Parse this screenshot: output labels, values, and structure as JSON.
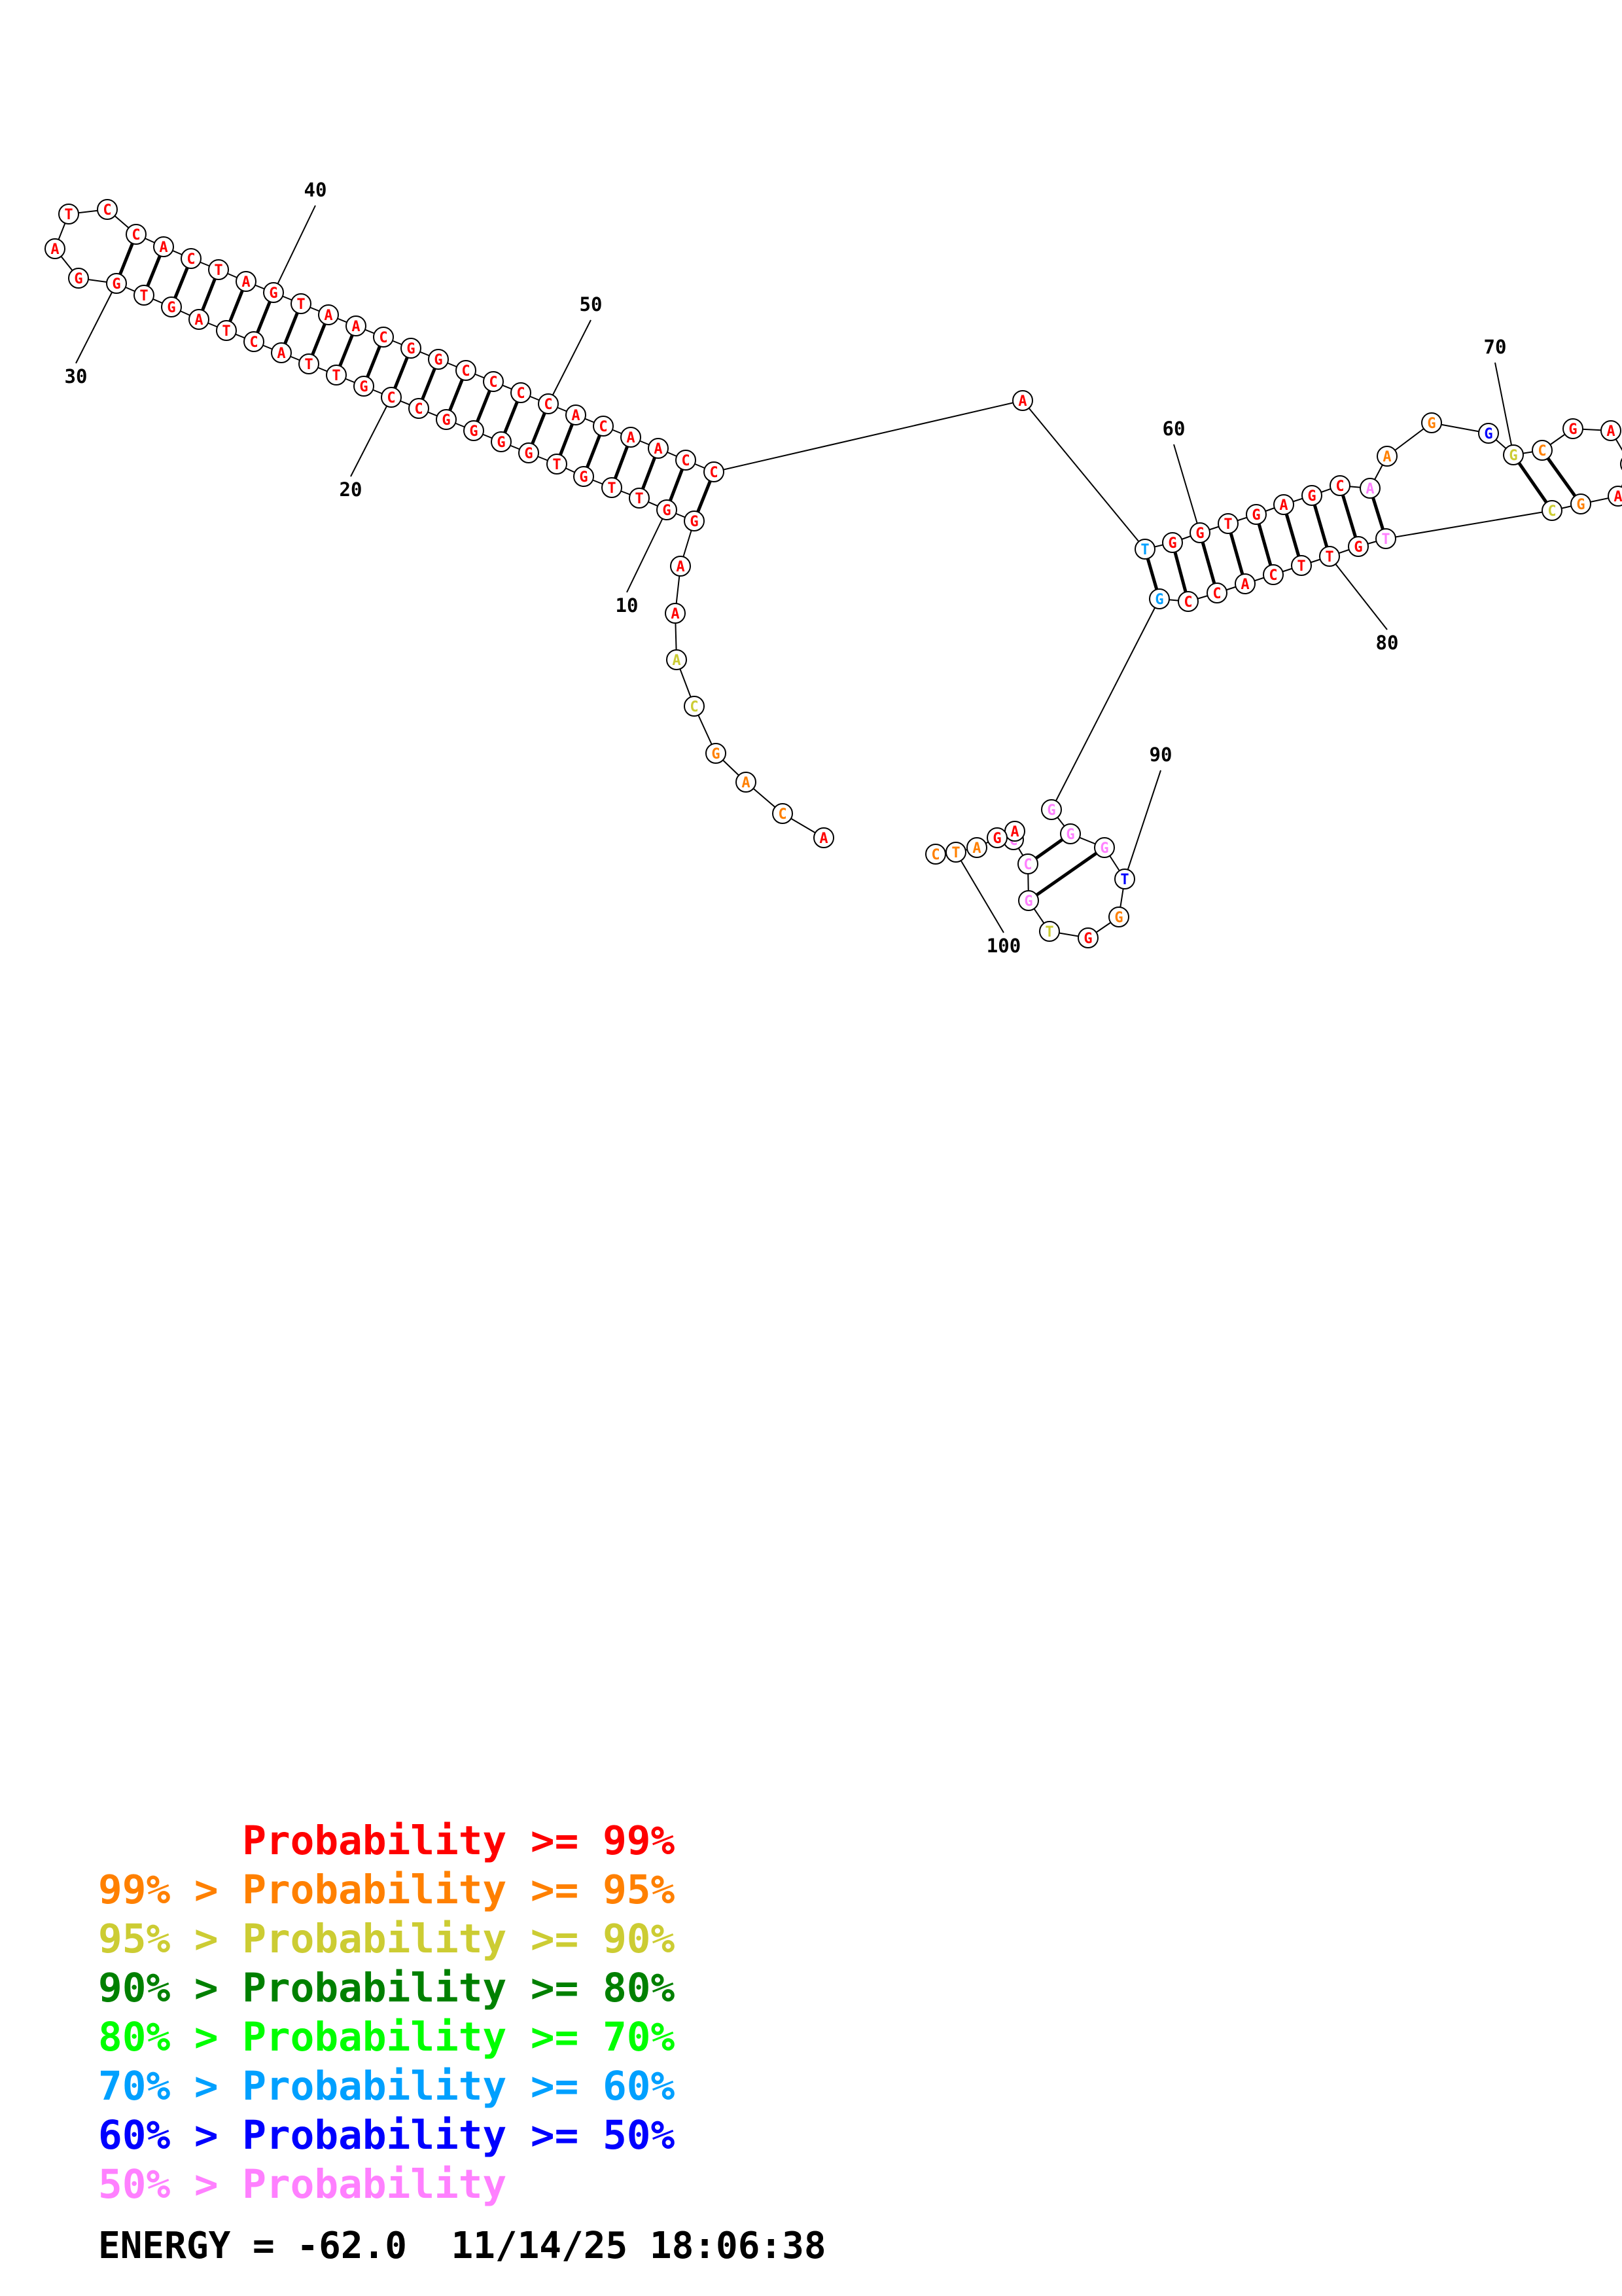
{
  "colors": {
    "p99": "#ff0000",
    "p95": "#ff8000",
    "p90": "#cccc33",
    "p80": "#008000",
    "p70": "#00ff00",
    "p60": "#00a0ff",
    "p50": "#0000ff",
    "plow": "#ff80ff"
  },
  "structure": {
    "nucleotides": [
      {
        "n": 1,
        "base": "A",
        "prob": "p99"
      },
      {
        "n": 2,
        "base": "C",
        "prob": "p95"
      },
      {
        "n": 3,
        "base": "A",
        "prob": "p95"
      },
      {
        "n": 4,
        "base": "G",
        "prob": "p95"
      },
      {
        "n": 5,
        "base": "C",
        "prob": "p90"
      },
      {
        "n": 6,
        "base": "A",
        "prob": "p90"
      },
      {
        "n": 7,
        "base": "A",
        "prob": "p99"
      },
      {
        "n": 8,
        "base": "A",
        "prob": "p99"
      },
      {
        "n": 9,
        "base": "G",
        "prob": "p99"
      },
      {
        "n": 10,
        "base": "G",
        "prob": "p99"
      },
      {
        "n": 11,
        "base": "T",
        "prob": "p99"
      },
      {
        "n": 12,
        "base": "T",
        "prob": "p99"
      },
      {
        "n": 13,
        "base": "G",
        "prob": "p99"
      },
      {
        "n": 14,
        "base": "T",
        "prob": "p99"
      },
      {
        "n": 15,
        "base": "G",
        "prob": "p99"
      },
      {
        "n": 16,
        "base": "G",
        "prob": "p99"
      },
      {
        "n": 17,
        "base": "G",
        "prob": "p99"
      },
      {
        "n": 18,
        "base": "G",
        "prob": "p99"
      },
      {
        "n": 19,
        "base": "C",
        "prob": "p99"
      },
      {
        "n": 20,
        "base": "C",
        "prob": "p99"
      },
      {
        "n": 21,
        "base": "G",
        "prob": "p99"
      },
      {
        "n": 22,
        "base": "T",
        "prob": "p99"
      },
      {
        "n": 23,
        "base": "T",
        "prob": "p99"
      },
      {
        "n": 24,
        "base": "A",
        "prob": "p99"
      },
      {
        "n": 25,
        "base": "C",
        "prob": "p99"
      },
      {
        "n": 26,
        "base": "T",
        "prob": "p99"
      },
      {
        "n": 27,
        "base": "A",
        "prob": "p99"
      },
      {
        "n": 28,
        "base": "G",
        "prob": "p99"
      },
      {
        "n": 29,
        "base": "T",
        "prob": "p99"
      },
      {
        "n": 30,
        "base": "G",
        "prob": "p99"
      },
      {
        "n": 31,
        "base": "G",
        "prob": "p99"
      },
      {
        "n": 32,
        "base": "A",
        "prob": "p99"
      },
      {
        "n": 33,
        "base": "T",
        "prob": "p99"
      },
      {
        "n": 34,
        "base": "C",
        "prob": "p99"
      },
      {
        "n": 35,
        "base": "C",
        "prob": "p99"
      },
      {
        "n": 36,
        "base": "A",
        "prob": "p99"
      },
      {
        "n": 37,
        "base": "C",
        "prob": "p99"
      },
      {
        "n": 38,
        "base": "T",
        "prob": "p99"
      },
      {
        "n": 39,
        "base": "A",
        "prob": "p99"
      },
      {
        "n": 40,
        "base": "G",
        "prob": "p99"
      },
      {
        "n": 41,
        "base": "T",
        "prob": "p99"
      },
      {
        "n": 42,
        "base": "A",
        "prob": "p99"
      },
      {
        "n": 43,
        "base": "A",
        "prob": "p99"
      },
      {
        "n": 44,
        "base": "C",
        "prob": "p99"
      },
      {
        "n": 45,
        "base": "G",
        "prob": "p99"
      },
      {
        "n": 46,
        "base": "G",
        "prob": "p99"
      },
      {
        "n": 47,
        "base": "C",
        "prob": "p99"
      },
      {
        "n": 48,
        "base": "C",
        "prob": "p99"
      },
      {
        "n": 49,
        "base": "C",
        "prob": "p99"
      },
      {
        "n": 50,
        "base": "C",
        "prob": "p99"
      },
      {
        "n": 51,
        "base": "A",
        "prob": "p99"
      },
      {
        "n": 52,
        "base": "C",
        "prob": "p99"
      },
      {
        "n": 53,
        "base": "A",
        "prob": "p99"
      },
      {
        "n": 54,
        "base": "A",
        "prob": "p99"
      },
      {
        "n": 55,
        "base": "C",
        "prob": "p99"
      },
      {
        "n": 56,
        "base": "C",
        "prob": "p99"
      },
      {
        "n": 57,
        "base": "A",
        "prob": "p99"
      },
      {
        "n": 58,
        "base": "T",
        "prob": "p60"
      },
      {
        "n": 59,
        "base": "G",
        "prob": "p99"
      },
      {
        "n": 60,
        "base": "G",
        "prob": "p99"
      },
      {
        "n": 61,
        "base": "T",
        "prob": "p99"
      },
      {
        "n": 62,
        "base": "G",
        "prob": "p99"
      },
      {
        "n": 63,
        "base": "A",
        "prob": "p99"
      },
      {
        "n": 64,
        "base": "G",
        "prob": "p99"
      },
      {
        "n": 65,
        "base": "C",
        "prob": "p99"
      },
      {
        "n": 66,
        "base": "A",
        "prob": "plow"
      },
      {
        "n": 67,
        "base": "A",
        "prob": "p95"
      },
      {
        "n": 68,
        "base": "G",
        "prob": "p95"
      },
      {
        "n": 69,
        "base": "G",
        "prob": "p50"
      },
      {
        "n": 70,
        "base": "G",
        "prob": "p90"
      },
      {
        "n": 71,
        "base": "C",
        "prob": "p95"
      },
      {
        "n": 72,
        "base": "G",
        "prob": "p99"
      },
      {
        "n": 73,
        "base": "A",
        "prob": "p99"
      },
      {
        "n": 74,
        "base": "C",
        "prob": "p99"
      },
      {
        "n": 75,
        "base": "A",
        "prob": "p99"
      },
      {
        "n": 76,
        "base": "G",
        "prob": "p95"
      },
      {
        "n": 77,
        "base": "C",
        "prob": "p90"
      },
      {
        "n": 78,
        "base": "T",
        "prob": "plow"
      },
      {
        "n": 79,
        "base": "G",
        "prob": "p99"
      },
      {
        "n": 80,
        "base": "T",
        "prob": "p99"
      },
      {
        "n": 81,
        "base": "T",
        "prob": "p99"
      },
      {
        "n": 82,
        "base": "C",
        "prob": "p99"
      },
      {
        "n": 83,
        "base": "A",
        "prob": "p99"
      },
      {
        "n": 84,
        "base": "C",
        "prob": "p99"
      },
      {
        "n": 85,
        "base": "C",
        "prob": "p99"
      },
      {
        "n": 86,
        "base": "G",
        "prob": "p60"
      },
      {
        "n": 87,
        "base": "G",
        "prob": "plow"
      },
      {
        "n": 88,
        "base": "G",
        "prob": "plow"
      },
      {
        "n": 89,
        "base": "G",
        "prob": "plow"
      },
      {
        "n": 90,
        "base": "T",
        "prob": "p50"
      },
      {
        "n": 91,
        "base": "G",
        "prob": "p95"
      },
      {
        "n": 92,
        "base": "G",
        "prob": "p99"
      },
      {
        "n": 93,
        "base": "T",
        "prob": "p90"
      },
      {
        "n": 94,
        "base": "G",
        "prob": "plow"
      },
      {
        "n": 95,
        "base": "C",
        "prob": "plow"
      },
      {
        "n": 96,
        "base": "C",
        "prob": "plow"
      },
      {
        "n": 97,
        "base": "A",
        "prob": "p99"
      },
      {
        "n": 98,
        "base": "G",
        "prob": "p99"
      },
      {
        "n": 99,
        "base": "A",
        "prob": "p95"
      },
      {
        "n": 100,
        "base": "T",
        "prob": "p95"
      },
      {
        "n": 101,
        "base": "C",
        "prob": "p95"
      }
    ],
    "pairs": [
      [
        9,
        56
      ],
      [
        10,
        55
      ],
      [
        11,
        54
      ],
      [
        12,
        53
      ],
      [
        13,
        52
      ],
      [
        14,
        51
      ],
      [
        15,
        50
      ],
      [
        16,
        49
      ],
      [
        17,
        48
      ],
      [
        18,
        47
      ],
      [
        19,
        46
      ],
      [
        20,
        45
      ],
      [
        21,
        44
      ],
      [
        22,
        43
      ],
      [
        23,
        42
      ],
      [
        24,
        41
      ],
      [
        25,
        40
      ],
      [
        26,
        39
      ],
      [
        27,
        38
      ],
      [
        28,
        37
      ],
      [
        29,
        36
      ],
      [
        30,
        35
      ],
      [
        58,
        86
      ],
      [
        59,
        85
      ],
      [
        60,
        84
      ],
      [
        61,
        83
      ],
      [
        62,
        82
      ],
      [
        63,
        81
      ],
      [
        64,
        80
      ],
      [
        65,
        79
      ],
      [
        66,
        78
      ],
      [
        70,
        77
      ],
      [
        71,
        76
      ],
      [
        88,
        95
      ],
      [
        89,
        94
      ]
    ],
    "index_labels": [
      "10",
      "20",
      "30",
      "40",
      "50",
      "60",
      "70",
      "80",
      "90",
      "100"
    ]
  },
  "legend": [
    {
      "prefix": "",
      "text": "Probability >= 99%",
      "color": "p99"
    },
    {
      "prefix": "99% > ",
      "text": "Probability >= 95%",
      "color": "p95"
    },
    {
      "prefix": "95% > ",
      "text": "Probability >= 90%",
      "color": "p90"
    },
    {
      "prefix": "90% > ",
      "text": "Probability >= 80%",
      "color": "p80"
    },
    {
      "prefix": "80% > ",
      "text": "Probability >= 70%",
      "color": "p70"
    },
    {
      "prefix": "70% > ",
      "text": "Probability >= 60%",
      "color": "p60"
    },
    {
      "prefix": "60% > ",
      "text": "Probability >= 50%",
      "color": "p50"
    },
    {
      "prefix": "50% > ",
      "text": "Probability",
      "color": "plow"
    }
  ],
  "footer": {
    "energy_text": "ENERGY = -62.0  11/14/25 18:06:38"
  }
}
